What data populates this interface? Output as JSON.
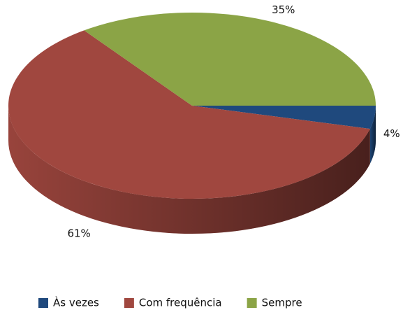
{
  "chart_data": {
    "type": "pie",
    "categories": [
      "Às vezes",
      "Com frequência",
      "Sempre"
    ],
    "values": [
      4,
      61,
      35
    ],
    "value_labels": [
      "4%",
      "61%",
      "35%"
    ],
    "colors": [
      "#1f497d",
      "#a0473f",
      "#8ba446"
    ],
    "legend": "bottom"
  }
}
